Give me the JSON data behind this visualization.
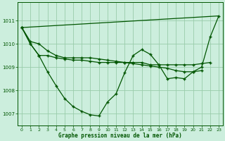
{
  "xlabel": "Graphe pression niveau de la mer (hPa)",
  "bg_color": "#cceedd",
  "grid_color": "#99ccaa",
  "line_color": "#005500",
  "xlim": [
    -0.5,
    23.5
  ],
  "ylim": [
    1006.5,
    1011.8
  ],
  "yticks": [
    1007,
    1008,
    1009,
    1010,
    1011
  ],
  "xticks": [
    0,
    1,
    2,
    3,
    4,
    5,
    6,
    7,
    8,
    9,
    10,
    11,
    12,
    13,
    14,
    15,
    16,
    17,
    18,
    19,
    20,
    21,
    22,
    23
  ],
  "series_smooth": [
    1010.7,
    1010.1,
    1010.0,
    1009.7,
    1009.5,
    1009.4,
    1009.4,
    1009.4,
    1009.4,
    1009.35,
    1009.3,
    1009.25,
    1009.2,
    1009.15,
    1009.1,
    1009.05,
    1009.0,
    1008.95,
    1008.85,
    1008.8,
    1008.8,
    1008.85,
    1009.0,
    1009.0
  ],
  "series_main": [
    1010.7,
    1010.0,
    1009.5,
    1008.8,
    1008.2,
    1007.65,
    1007.3,
    1007.1,
    1006.95,
    1006.9,
    1007.5,
    1007.85,
    1008.75,
    1009.5,
    1009.75,
    1009.55,
    1009.1,
    1008.5,
    1008.55,
    1008.5,
    1008.8,
    1009.0,
    1010.3,
    1011.2
  ],
  "series_alt": [
    1010.7,
    1010.0,
    1009.5,
    1009.5,
    1009.4,
    1009.35,
    1009.3,
    1009.3,
    1009.25,
    1009.2,
    1009.2,
    1009.2,
    1009.2,
    1009.2,
    1009.2,
    1009.1,
    1009.1,
    1009.1,
    1009.1,
    1009.1,
    1009.1,
    1009.15,
    1009.2,
    1009.2
  ]
}
